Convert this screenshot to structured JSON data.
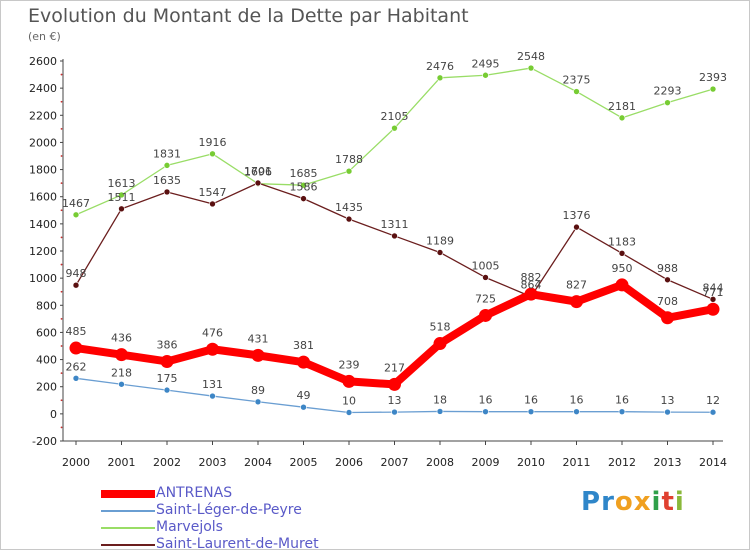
{
  "header": {
    "title": "Evolution du Montant de la Dette par Habitant",
    "unit": "(en €)"
  },
  "chart_data": {
    "type": "line",
    "x": [
      2000,
      2001,
      2002,
      2003,
      2004,
      2005,
      2006,
      2007,
      2008,
      2009,
      2010,
      2011,
      2012,
      2013,
      2014
    ],
    "ylim": [
      -200,
      2600
    ],
    "yticks": [
      -200,
      0,
      200,
      400,
      600,
      800,
      1000,
      1200,
      1400,
      1600,
      1800,
      2000,
      2200,
      2400,
      2600
    ],
    "grid": false,
    "legend_position": "bottom-left",
    "series": [
      {
        "name": "ANTRENAS",
        "color": "#ff0000",
        "values": [
          485,
          436,
          386,
          476,
          431,
          381,
          239,
          217,
          518,
          725,
          882,
          827,
          950,
          708,
          771
        ]
      },
      {
        "name": "Saint-Léger-de-Peyre",
        "color": "#6a9ed2",
        "values": [
          262,
          218,
          175,
          131,
          89,
          49,
          10,
          13,
          18,
          16,
          16,
          16,
          16,
          13,
          12
        ]
      },
      {
        "name": "Marvejols",
        "color": "#99dd66",
        "values": [
          1467,
          1613,
          1831,
          1916,
          1696,
          1685,
          1788,
          2105,
          2476,
          2495,
          2548,
          2375,
          2181,
          2293,
          2393
        ]
      },
      {
        "name": "Saint-Laurent-de-Muret",
        "color": "#6b1e1e",
        "values": [
          948,
          1511,
          1635,
          1547,
          1701,
          1586,
          1435,
          1311,
          1189,
          1005,
          864,
          1376,
          1183,
          988,
          844
        ]
      }
    ]
  },
  "logo": {
    "letters": [
      "P",
      "r",
      "o",
      "x",
      "i",
      "t",
      "i"
    ],
    "colors": [
      "#2f86c9",
      "#2f86c9",
      "#f0a020",
      "#f0a020",
      "#2fa04a",
      "#e04030",
      "#8ab83a"
    ]
  }
}
